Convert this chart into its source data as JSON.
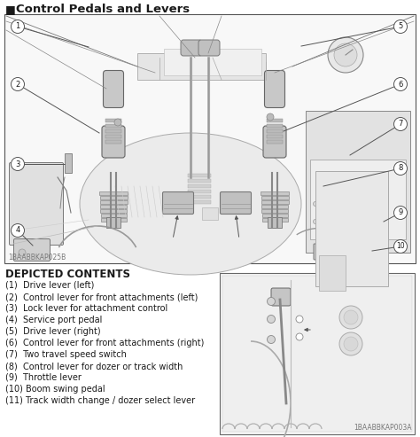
{
  "title": "Control Pedals and Levers",
  "title_marker": "■",
  "bg_color": "#f2f2f2",
  "page_bg": "#ffffff",
  "depicted_contents_title": "DEPICTED CONTENTS",
  "items": [
    "(1)  Drive lever (left)",
    "(2)  Control lever for front attachments (left)",
    "(3)  Lock lever for attachment control",
    "(4)  Service port pedal",
    "(5)  Drive lever (right)",
    "(6)  Control lever for front attachments (right)",
    "(7)  Two travel speed switch",
    "(8)  Control lever for dozer or track width",
    "(9)  Throttle lever",
    "(10) Boom swing pedal",
    "(11) Track width change / dozer select lever"
  ],
  "code_left": "1BAABBKAP025B",
  "code_right": "1BAABBKAP003A",
  "text_color": "#1a1a1a",
  "line_color": "#444444",
  "gray_dark": "#888888",
  "gray_mid": "#aaaaaa",
  "gray_light": "#cccccc",
  "gray_fill": "#d8d8d8",
  "white": "#ffffff",
  "font_size_title": 9.5,
  "font_size_items": 7.0,
  "font_size_code": 5.5,
  "font_size_label": 6.5
}
